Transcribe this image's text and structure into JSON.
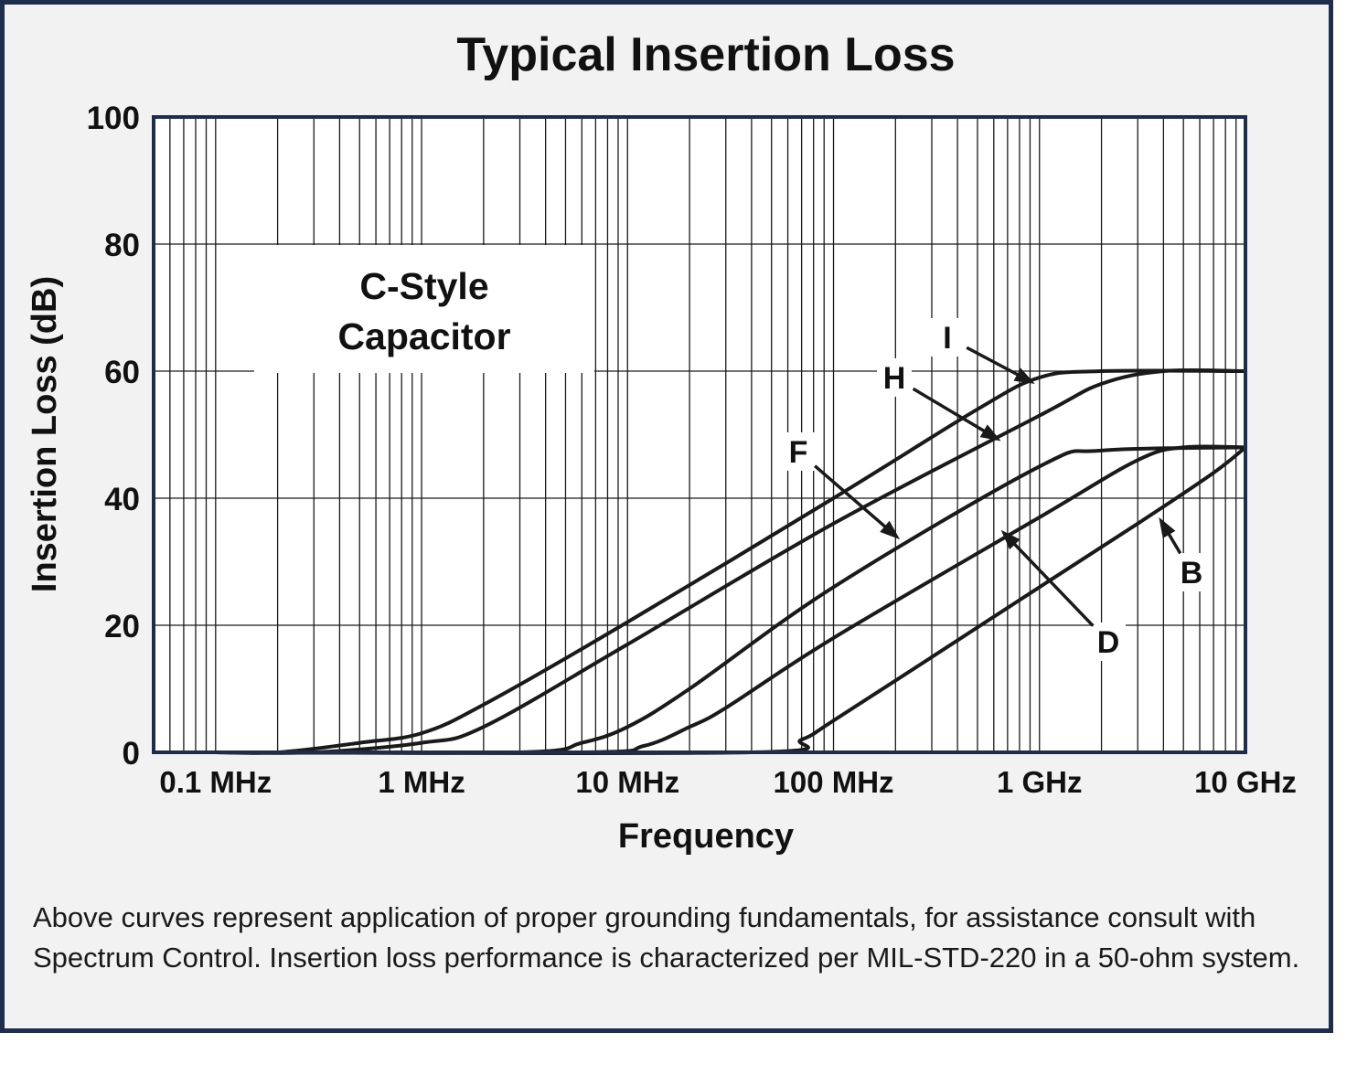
{
  "chart_data": {
    "type": "line",
    "title": "Typical Insertion Loss",
    "xlabel": "Frequency",
    "ylabel": "Insertion Loss (dB)",
    "x_scale": "log",
    "x_unit": "Hz",
    "xlim": [
      50000,
      10000000000
    ],
    "ylim": [
      0,
      100
    ],
    "yticks": [
      0,
      20,
      40,
      60,
      80,
      100
    ],
    "xticks": [
      {
        "value": 100000,
        "label": "0.1 MHz"
      },
      {
        "value": 1000000,
        "label": "1 MHz"
      },
      {
        "value": 10000000,
        "label": "10 MHz"
      },
      {
        "value": 100000000,
        "label": "100 MHz"
      },
      {
        "value": 1000000000,
        "label": "1 GHz"
      },
      {
        "value": 10000000000,
        "label": "10 GHz"
      }
    ],
    "grid": true,
    "annotation_box": [
      "C-Style",
      "Capacitor"
    ],
    "series": [
      {
        "name": "I",
        "points": [
          [
            100000,
            0
          ],
          [
            200000,
            0
          ],
          [
            500000,
            1.5
          ],
          [
            1000000,
            3
          ],
          [
            2000000,
            7.5
          ],
          [
            10000000,
            20.5
          ],
          [
            100000000,
            40
          ],
          [
            500000000,
            54
          ],
          [
            1000000000,
            59
          ],
          [
            2000000000,
            60
          ],
          [
            10000000000,
            60
          ]
        ]
      },
      {
        "name": "H",
        "points": [
          [
            100000,
            0
          ],
          [
            300000,
            0
          ],
          [
            1000000,
            1.5
          ],
          [
            2000000,
            4
          ],
          [
            10000000,
            17
          ],
          [
            100000000,
            36
          ],
          [
            1000000000,
            53
          ],
          [
            2000000000,
            58
          ],
          [
            4000000000,
            60
          ],
          [
            10000000000,
            60
          ]
        ]
      },
      {
        "name": "F",
        "points": [
          [
            100000,
            0
          ],
          [
            3000000,
            0
          ],
          [
            6000000,
            1.5
          ],
          [
            10000000,
            4
          ],
          [
            20000000,
            10
          ],
          [
            100000000,
            26
          ],
          [
            1000000000,
            45
          ],
          [
            2000000000,
            47.5
          ],
          [
            10000000000,
            48
          ]
        ]
      },
      {
        "name": "D",
        "points": [
          [
            100000,
            0
          ],
          [
            6000000,
            0
          ],
          [
            12000000,
            1
          ],
          [
            20000000,
            4
          ],
          [
            30000000,
            7
          ],
          [
            100000000,
            18
          ],
          [
            1000000000,
            37
          ],
          [
            3000000000,
            46
          ],
          [
            5000000000,
            48
          ],
          [
            10000000000,
            48
          ]
        ]
      },
      {
        "name": "B",
        "points": [
          [
            100000,
            0
          ],
          [
            40000000,
            0
          ],
          [
            70000000,
            2
          ],
          [
            100000000,
            5
          ],
          [
            300000000,
            15
          ],
          [
            1000000000,
            26
          ],
          [
            3000000000,
            36
          ],
          [
            7000000000,
            44
          ],
          [
            10000000000,
            48
          ]
        ]
      }
    ],
    "series_labels": [
      {
        "name": "I",
        "target": [
          950000000,
          58
        ]
      },
      {
        "name": "H",
        "target": [
          650000000,
          49
        ]
      },
      {
        "name": "F",
        "target": [
          210000000,
          33.5
        ]
      },
      {
        "name": "D",
        "target": [
          650000000,
          35
        ]
      },
      {
        "name": "B",
        "target": [
          3800000000,
          37
        ]
      }
    ]
  },
  "caption": "Above curves represent application of proper grounding fundamentals, for assistance consult with Spectrum Control. Insertion loss performance is characterized per MIL-STD-220 in a 50-ohm system.",
  "colors": {
    "frame": "#1f2d4d",
    "background": "#f2f2f2",
    "plot_area": "#ffffff",
    "axes": "#1f2d4d",
    "curves": "#1a1a1a"
  }
}
